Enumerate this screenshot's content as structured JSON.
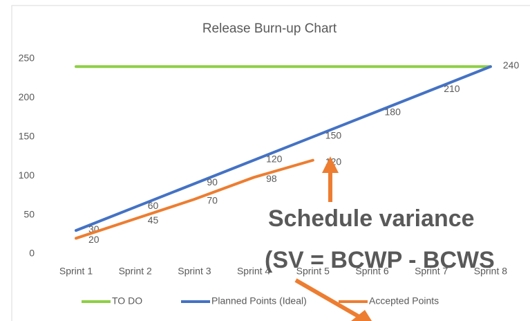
{
  "chart_data": {
    "type": "line",
    "title": "Release Burn-up Chart",
    "categories": [
      "Sprint 1",
      "Sprint 2",
      "Sprint 3",
      "Sprint 4",
      "Sprint 5",
      "Sprint 6",
      "Sprint 7",
      "Sprint 8"
    ],
    "series": [
      {
        "name": "TO DO",
        "color": "#8ECF45",
        "values": [
          240,
          240,
          240,
          240,
          240,
          240,
          240,
          240
        ]
      },
      {
        "name": "Planned Points (Ideal)",
        "color": "#4472C4",
        "values": [
          30,
          60,
          90,
          120,
          150,
          180,
          210,
          240
        ],
        "data_labels": true
      },
      {
        "name": "Accepted Points",
        "color": "#ED7D31",
        "values": [
          20,
          45,
          70,
          98,
          120,
          null,
          null,
          null
        ],
        "data_labels": true
      }
    ],
    "ylim": [
      0,
      250
    ],
    "yticks": [
      0,
      50,
      100,
      150,
      200,
      250
    ],
    "grid": false,
    "legend": "bottom",
    "annotations": [
      "Schedule variance",
      "(SV = BCWP - BCWS"
    ],
    "annotation_color": "#ED7D31"
  }
}
